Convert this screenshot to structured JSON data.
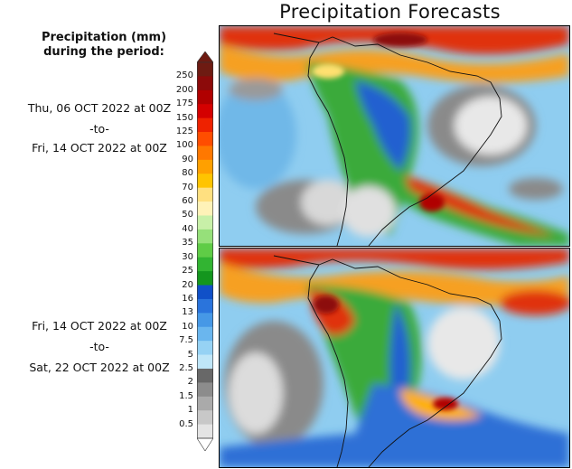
{
  "title": "Precipitation Forecasts",
  "legend": {
    "heading_line1": "Precipitation (mm)",
    "heading_line2": "during the period:",
    "levels": [
      "250",
      "200",
      "175",
      "150",
      "125",
      "100",
      "90",
      "80",
      "70",
      "60",
      "50",
      "40",
      "35",
      "30",
      "25",
      "20",
      "16",
      "13",
      "10",
      "7.5",
      "5",
      "2.5",
      "2",
      "1.5",
      "1",
      "0.5"
    ],
    "colors": [
      "#6e1b12",
      "#8c0a0a",
      "#b00000",
      "#d40000",
      "#ee2200",
      "#ff4d00",
      "#ff7800",
      "#ffa000",
      "#ffc400",
      "#ffe080",
      "#fff2b8",
      "#c8f0a8",
      "#96e07a",
      "#5fcc46",
      "#32b432",
      "#14961e",
      "#1050c8",
      "#2a74dc",
      "#4698e6",
      "#6ab6ee",
      "#96d2f4",
      "#bfe6f8",
      "#686868",
      "#8c8c8c",
      "#aaaaaa",
      "#c8c8c8",
      "#e4e4e4"
    ]
  },
  "panels": [
    {
      "period_start": "Thu, 06 OCT 2022 at 00Z",
      "separator": "-to-",
      "period_end": "Fri, 14 OCT 2022 at 00Z"
    },
    {
      "period_start": "Fri, 14 OCT 2022 at 00Z",
      "separator": "-to-",
      "period_end": "Sat, 22 OCT 2022 at 00Z"
    }
  ]
}
